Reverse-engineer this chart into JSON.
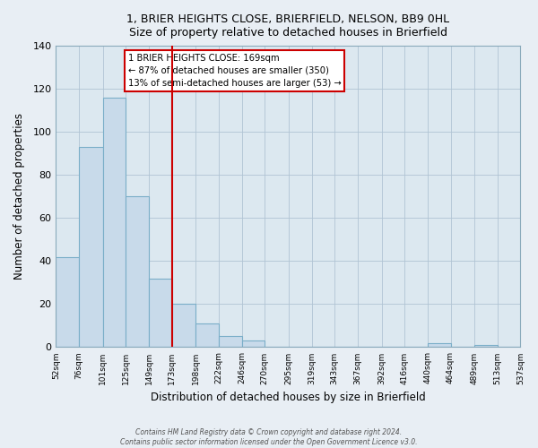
{
  "title": "1, BRIER HEIGHTS CLOSE, BRIERFIELD, NELSON, BB9 0HL",
  "subtitle": "Size of property relative to detached houses in Brierfield",
  "xlabel": "Distribution of detached houses by size in Brierfield",
  "ylabel": "Number of detached properties",
  "bar_color": "#c8daea",
  "bar_edge_color": "#7aaec8",
  "vline_x": 173,
  "vline_color": "#cc0000",
  "annotation_line1": "1 BRIER HEIGHTS CLOSE: 169sqm",
  "annotation_line2": "← 87% of detached houses are smaller (350)",
  "annotation_line3": "13% of semi-detached houses are larger (53) →",
  "bin_edges": [
    52,
    76,
    101,
    125,
    149,
    173,
    198,
    222,
    246,
    270,
    295,
    319,
    343,
    367,
    392,
    416,
    440,
    464,
    489,
    513,
    537
  ],
  "bin_labels": [
    "52sqm",
    "76sqm",
    "101sqm",
    "125sqm",
    "149sqm",
    "173sqm",
    "198sqm",
    "222sqm",
    "246sqm",
    "270sqm",
    "295sqm",
    "319sqm",
    "343sqm",
    "367sqm",
    "392sqm",
    "416sqm",
    "440sqm",
    "464sqm",
    "489sqm",
    "513sqm",
    "537sqm"
  ],
  "counts": [
    42,
    93,
    116,
    70,
    32,
    20,
    11,
    5,
    3,
    0,
    0,
    0,
    0,
    0,
    0,
    0,
    2,
    0,
    1,
    0
  ],
  "ylim": [
    0,
    140
  ],
  "yticks": [
    0,
    20,
    40,
    60,
    80,
    100,
    120,
    140
  ],
  "footer_line1": "Contains HM Land Registry data © Crown copyright and database right 2024.",
  "footer_line2": "Contains public sector information licensed under the Open Government Licence v3.0.",
  "bg_color": "#e8eef4",
  "plot_bg_color": "#dce8f0"
}
